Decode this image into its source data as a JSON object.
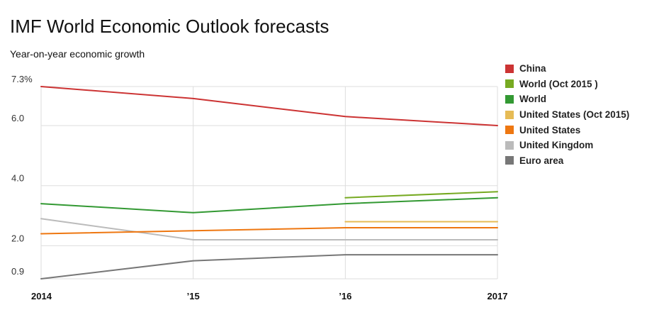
{
  "chart_data": {
    "type": "line",
    "title": "IMF World Economic Outlook forecasts",
    "subtitle": "Year-on-year economic growth",
    "x": [
      "2014",
      "’15",
      "’16",
      "2017"
    ],
    "y_ticks": [
      {
        "value": 7.3,
        "label": "7.3%"
      },
      {
        "value": 6.0,
        "label": "6.0"
      },
      {
        "value": 4.0,
        "label": "4.0"
      },
      {
        "value": 2.0,
        "label": "2.0"
      },
      {
        "value": 0.9,
        "label": "0.9"
      }
    ],
    "ylim": [
      0.9,
      7.3
    ],
    "grid": true,
    "legend_position": "right",
    "series": [
      {
        "name": "China",
        "color": "#cc3333",
        "values": [
          7.3,
          6.9,
          6.3,
          6.0
        ]
      },
      {
        "name": "World (Oct 2015 )",
        "color": "#77aa22",
        "values": [
          null,
          null,
          3.6,
          3.8
        ]
      },
      {
        "name": "World",
        "color": "#339933",
        "values": [
          3.4,
          3.1,
          3.4,
          3.6
        ]
      },
      {
        "name": "United States (Oct 2015)",
        "color": "#e6bb55",
        "values": [
          null,
          null,
          2.8,
          2.8
        ]
      },
      {
        "name": "United States",
        "color": "#ee7711",
        "values": [
          2.4,
          2.5,
          2.6,
          2.6
        ]
      },
      {
        "name": "United Kingdom",
        "color": "#bbbbbb",
        "values": [
          2.9,
          2.2,
          2.2,
          2.2
        ]
      },
      {
        "name": "Euro area",
        "color": "#777777",
        "values": [
          0.9,
          1.5,
          1.7,
          1.7
        ]
      }
    ]
  }
}
